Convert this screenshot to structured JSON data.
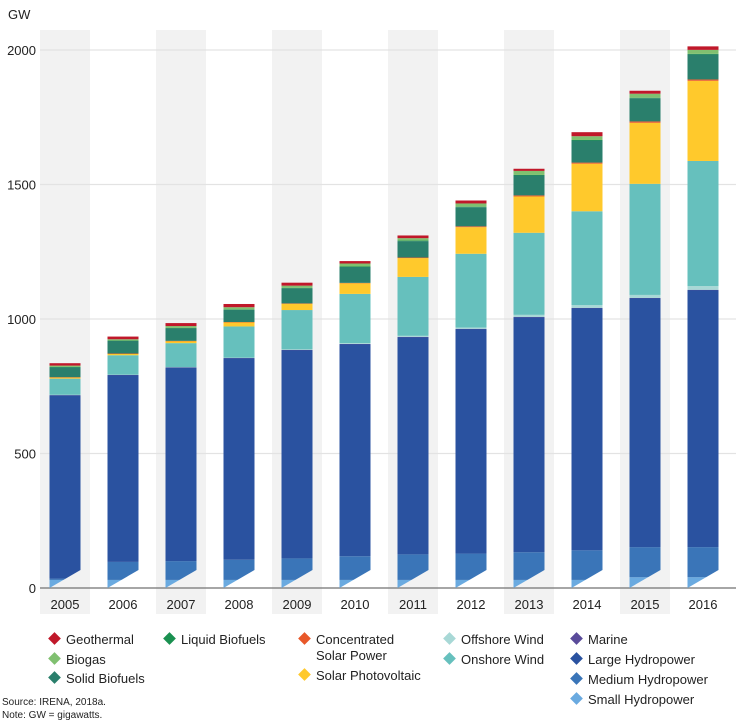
{
  "chart_data": {
    "type": "bar",
    "stacked": true,
    "ylabel": "GW",
    "ylim": [
      0,
      2000
    ],
    "yticks": [
      0,
      500,
      1000,
      1500,
      2000
    ],
    "grid": true,
    "legend_position": "bottom",
    "categories": [
      "2005",
      "2006",
      "2007",
      "2008",
      "2009",
      "2010",
      "2011",
      "2012",
      "2013",
      "2014",
      "2015",
      "2016"
    ],
    "series": [
      {
        "name": "Small Hydropower",
        "color": "#6aaae0",
        "values": [
          30,
          30,
          30,
          30,
          30,
          30,
          30,
          30,
          30,
          30,
          40,
          40
        ]
      },
      {
        "name": "Medium Hydropower",
        "color": "#3a75b8",
        "values": [
          5,
          67,
          70,
          75,
          80,
          88,
          95,
          98,
          103,
          110,
          112,
          112
        ]
      },
      {
        "name": "Large Hydropower",
        "color": "#2a52a0",
        "values": [
          682,
          695,
          720,
          750,
          775,
          789,
          808,
          835,
          874,
          901,
          926,
          956
        ]
      },
      {
        "name": "Marine",
        "color": "#5a4b9a",
        "values": [
          0.3,
          0.3,
          0.3,
          0.3,
          0.3,
          0.3,
          0.5,
          0.5,
          0.5,
          0.5,
          0.5,
          0.5
        ]
      },
      {
        "name": "Offshore Wind",
        "color": "#a8d8d6",
        "values": [
          1,
          1,
          1,
          1,
          2,
          3,
          4,
          5,
          8,
          10,
          11,
          14
        ]
      },
      {
        "name": "Onshore Wind",
        "color": "#66c0bd",
        "values": [
          60,
          72,
          89,
          116,
          146,
          183,
          219,
          274,
          305,
          349,
          413,
          465
        ]
      },
      {
        "name": "Solar Photovoltaic",
        "color": "#ffc92c",
        "values": [
          5,
          6,
          8,
          16,
          24,
          40,
          70,
          99,
          135,
          177,
          227,
          298
        ]
      },
      {
        "name": "Concentrated Solar Power",
        "color": "#e8582a",
        "values": [
          0.4,
          0.4,
          0.5,
          0.5,
          0.7,
          1,
          2,
          3,
          4,
          4,
          5,
          5
        ]
      },
      {
        "name": "Solid Biofuels",
        "color": "#2a7f6c",
        "values": [
          37,
          47,
          47,
          45,
          56,
          59,
          61,
          71,
          74,
          82,
          86,
          93
        ]
      },
      {
        "name": "Liquid Biofuels",
        "color": "#1a9050",
        "values": [
          1,
          1,
          1,
          2,
          2,
          2,
          2,
          2,
          2,
          2,
          2,
          2
        ]
      },
      {
        "name": "Biogas",
        "color": "#80c070",
        "values": [
          5,
          5,
          7,
          8,
          8,
          11,
          9,
          12,
          15,
          14,
          15,
          15
        ]
      },
      {
        "name": "Geothermal",
        "color": "#c0182a",
        "values": [
          9,
          10,
          11,
          12,
          11,
          9,
          10,
          11,
          8,
          15,
          11,
          13
        ]
      }
    ]
  },
  "legend_items": [
    {
      "label": "Geothermal",
      "color": "#c0182a"
    },
    {
      "label": "Liquid Biofuels",
      "color": "#1a9050"
    },
    {
      "label": "Biogas",
      "color": "#80c070"
    },
    {
      "label": "Solid Biofuels",
      "color": "#2a7f6c"
    },
    {
      "label": "Concentrated Solar Power",
      "color": "#e8582a"
    },
    {
      "label": "Solar Photovoltaic",
      "color": "#ffc92c"
    },
    {
      "label": "Offshore Wind",
      "color": "#a8d8d6"
    },
    {
      "label": "Onshore Wind",
      "color": "#66c0bd"
    },
    {
      "label": "Marine",
      "color": "#5a4b9a"
    },
    {
      "label": "Large Hydropower",
      "color": "#2a52a0"
    },
    {
      "label": "Medium Hydropower",
      "color": "#3a75b8"
    },
    {
      "label": "Small Hydropower",
      "color": "#6aaae0"
    }
  ],
  "notes": {
    "source": "Source: IRENA, 2018a.",
    "note": "Note: GW = gigawatts."
  }
}
